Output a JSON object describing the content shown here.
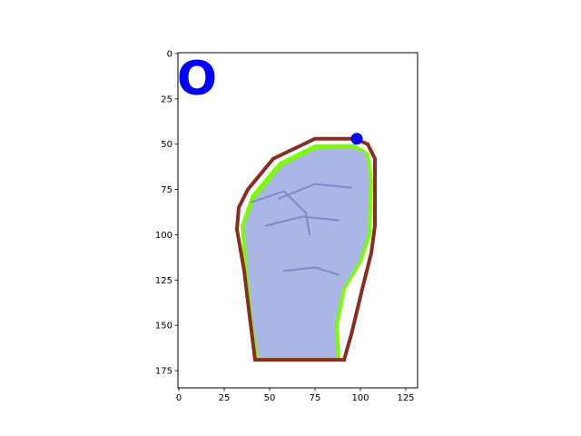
{
  "chart_data": {
    "type": "image",
    "title": "",
    "xlabel": "",
    "ylabel": "",
    "xlim": [
      -0.5,
      131.5
    ],
    "ylim": [
      184.5,
      -0.5
    ],
    "x_ticks": [
      0,
      25,
      50,
      75,
      100,
      125
    ],
    "y_ticks": [
      0,
      25,
      50,
      75,
      100,
      125,
      150,
      175
    ],
    "annotation_text": "O",
    "annotation_color": "#0000ff",
    "outer_hull": [
      [
        42,
        169
      ],
      [
        91,
        169
      ],
      [
        95,
        155
      ],
      [
        101,
        130
      ],
      [
        106,
        110
      ],
      [
        108,
        95
      ],
      [
        108,
        58
      ],
      [
        104,
        50
      ],
      [
        97,
        47
      ],
      [
        75,
        47
      ],
      [
        52,
        58
      ],
      [
        38,
        75
      ],
      [
        33,
        85
      ],
      [
        32,
        97
      ],
      [
        36,
        120
      ],
      [
        39,
        145
      ]
    ],
    "inner_contour": [
      [
        42,
        169
      ],
      [
        89,
        169
      ],
      [
        88,
        150
      ],
      [
        92,
        130
      ],
      [
        101,
        115
      ],
      [
        106,
        100
      ],
      [
        107,
        70
      ],
      [
        105,
        55
      ],
      [
        97,
        50
      ],
      [
        75,
        50
      ],
      [
        55,
        60
      ],
      [
        40,
        78
      ],
      [
        34,
        95
      ],
      [
        36,
        120
      ],
      [
        39,
        150
      ]
    ],
    "marker_point": [
      98,
      47
    ],
    "colors": {
      "outer_hull": "#8b2c22",
      "inner_contour": "#7cfc00",
      "marker": "#0000ff",
      "hand": "#aab6e6",
      "hand_shadow": "#7c8bc8"
    }
  }
}
